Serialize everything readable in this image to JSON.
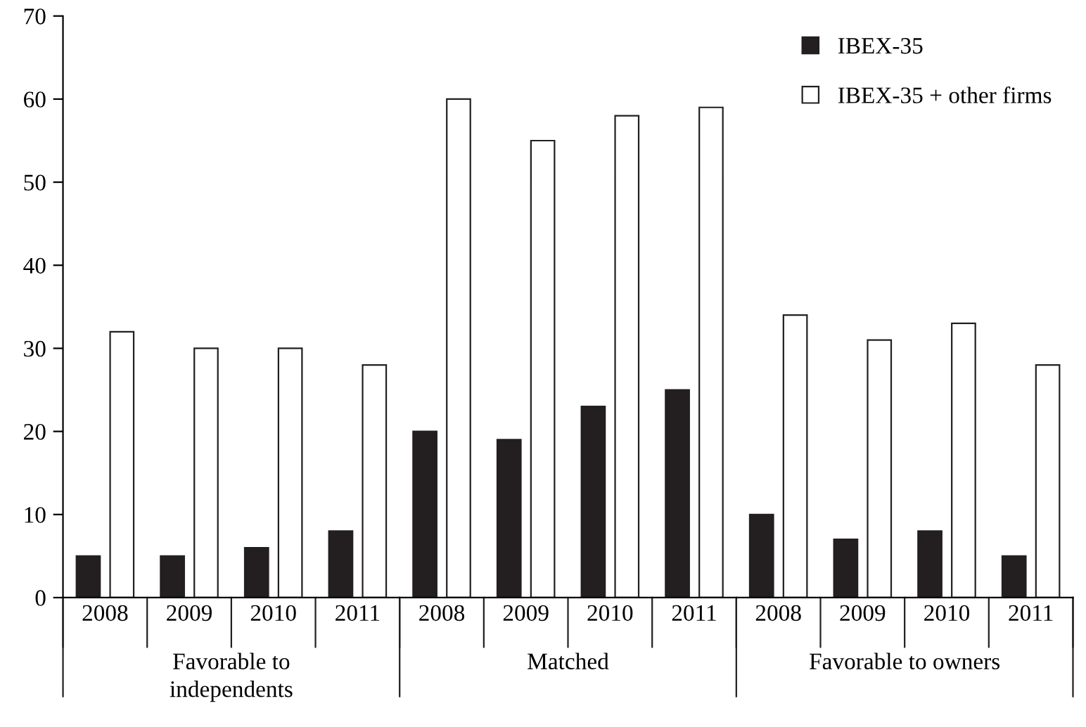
{
  "chart_data": {
    "type": "bar",
    "categories": [
      "2008",
      "2009",
      "2010",
      "2011",
      "2008",
      "2009",
      "2010",
      "2011",
      "2008",
      "2009",
      "2010",
      "2011"
    ],
    "series": [
      {
        "name": "IBEX-35",
        "color": "#231f20",
        "values": [
          5,
          5,
          6,
          8,
          20,
          19,
          23,
          25,
          10,
          7,
          8,
          5
        ]
      },
      {
        "name": "IBEX-35 + other firms",
        "color": "#ffffff",
        "values": [
          32,
          30,
          30,
          28,
          60,
          55,
          58,
          59,
          34,
          31,
          33,
          28
        ]
      }
    ],
    "annotations": [
      "Favorable to\nindependents",
      "Matched",
      "Favorable to owners"
    ],
    "ylim": [
      0,
      70
    ],
    "yticks": [
      0,
      10,
      20,
      30,
      40,
      50,
      60,
      70
    ],
    "grid": false,
    "legend": "top right"
  }
}
